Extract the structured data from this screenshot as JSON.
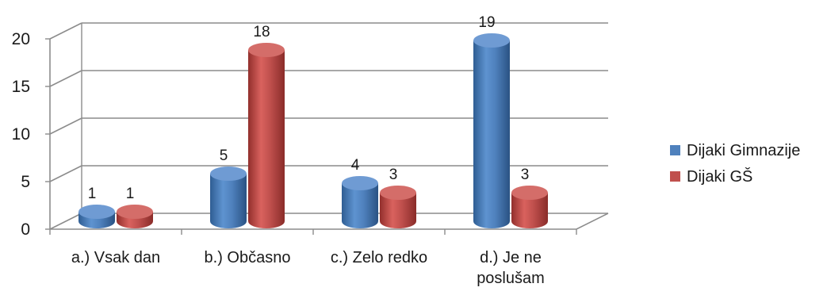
{
  "chart_data": {
    "type": "bar",
    "style": "3d-cylinder",
    "categories": [
      [
        "a.) Vsak dan"
      ],
      [
        "b.) Občasno"
      ],
      [
        "c.) Zelo redko"
      ],
      [
        "d.) Je ne",
        "poslušam"
      ]
    ],
    "series": [
      {
        "name": "Dijaki Gimnazije",
        "values": [
          1,
          5,
          4,
          19
        ],
        "color": "#4f81bd"
      },
      {
        "name": "Dijaki GŠ",
        "values": [
          1,
          18,
          3,
          3
        ],
        "color": "#c0504d"
      }
    ],
    "ylim": [
      0,
      20
    ],
    "yticks": [
      "0",
      "5",
      "10",
      "15",
      "20"
    ],
    "grid": true,
    "legend_position": "right",
    "data_labels": true
  }
}
